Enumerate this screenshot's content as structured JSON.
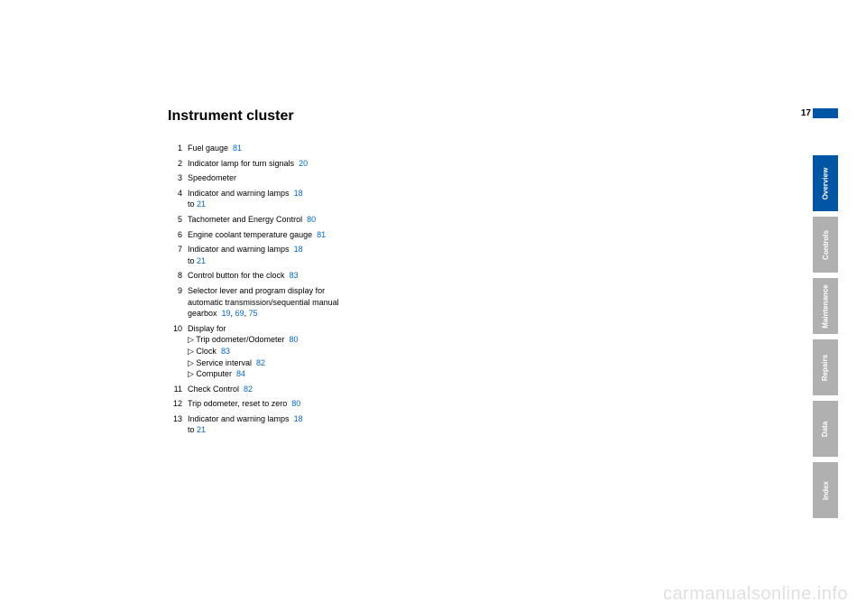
{
  "page_number": "17",
  "title": "Instrument cluster",
  "items": [
    {
      "n": "1",
      "text": "Fuel gauge",
      "links": [
        "81"
      ]
    },
    {
      "n": "2",
      "text": "Indicator lamp for turn signals",
      "links": [
        "20"
      ]
    },
    {
      "n": "3",
      "text": "Speedometer",
      "links": []
    },
    {
      "n": "4",
      "text": "Indicator and warning lamps",
      "links": [
        "18"
      ],
      "suffix": " to ",
      "links2": [
        "21"
      ]
    },
    {
      "n": "5",
      "text": "Tachometer and Energy Control",
      "links": [
        "80"
      ]
    },
    {
      "n": "6",
      "text": "Engine coolant temperature gauge",
      "links": [
        "81"
      ]
    },
    {
      "n": "7",
      "text": "Indicator and warning lamps",
      "links": [
        "18"
      ],
      "suffix": " to ",
      "links2": [
        "21"
      ]
    },
    {
      "n": "8",
      "text": "Control button for the clock",
      "links": [
        "83"
      ]
    },
    {
      "n": "9",
      "text": "Selector lever and program display for automatic transmission/sequential manual gearbox",
      "links": [
        "19",
        "69",
        "75"
      ]
    },
    {
      "n": "10",
      "text": "Display for",
      "links": [],
      "subs": [
        {
          "text": "Trip odometer/Odometer",
          "links": [
            "80"
          ]
        },
        {
          "text": "Clock",
          "links": [
            "83"
          ]
        },
        {
          "text": "Service interval",
          "links": [
            "82"
          ]
        },
        {
          "text": "Computer",
          "links": [
            "84"
          ]
        }
      ]
    },
    {
      "n": "11",
      "text": "Check Control",
      "links": [
        "82"
      ]
    },
    {
      "n": "12",
      "text": "Trip odometer, reset to zero",
      "links": [
        "80"
      ]
    },
    {
      "n": "13",
      "text": "Indicator and warning lamps",
      "links": [
        "18"
      ],
      "suffix": " to ",
      "links2": [
        "21"
      ]
    }
  ],
  "tabs": [
    {
      "label": "Overview",
      "active": true
    },
    {
      "label": "Controls",
      "active": false
    },
    {
      "label": "Maintenance",
      "active": false
    },
    {
      "label": "Repairs",
      "active": false
    },
    {
      "label": "Data",
      "active": false
    },
    {
      "label": "Index",
      "active": false
    }
  ],
  "watermark": "carmanualsonline.info",
  "colors": {
    "link": "#0066cc",
    "tab_active_bg": "#0055a5",
    "tab_inactive_bg": "#b0b0b0",
    "watermark": "#e0e0e0"
  }
}
